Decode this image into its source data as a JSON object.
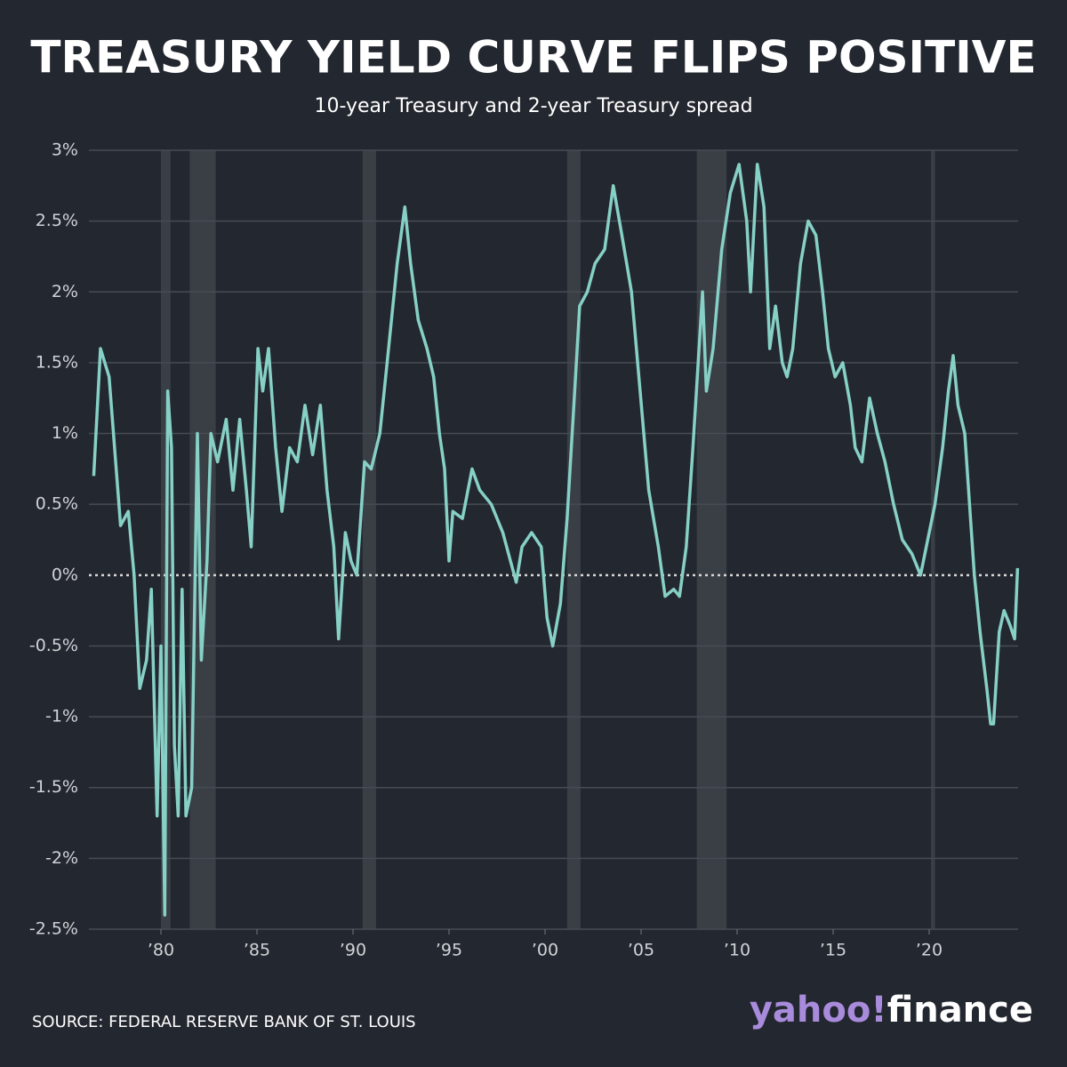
{
  "chart_data": {
    "type": "line",
    "title": "TREASURY YIELD CURVE FLIPS POSITIVE",
    "subtitle": "10-year Treasury and 2-year Treasury spread",
    "source": "SOURCE: FEDERAL RESERVE BANK OF ST. LOUIS",
    "logo": {
      "yahoo": "yahoo!",
      "finance": "finance"
    },
    "color": "#86d0c6",
    "x": [
      1976.5,
      1976.85,
      1977.3,
      1977.9,
      1978.3,
      1978.6,
      1978.9,
      1979.25,
      1979.5,
      1979.8,
      1980.0,
      1980.2,
      1980.35,
      1980.55,
      1980.7,
      1980.9,
      1981.1,
      1981.3,
      1981.6,
      1981.9,
      1982.1,
      1982.4,
      1982.6,
      1982.95,
      1983.4,
      1983.75,
      1984.1,
      1984.45,
      1984.7,
      1985.05,
      1985.3,
      1985.6,
      1985.97,
      1986.3,
      1986.7,
      1987.1,
      1987.5,
      1987.9,
      1988.3,
      1988.65,
      1989.0,
      1989.25,
      1989.6,
      1989.9,
      1990.2,
      1990.6,
      1990.95,
      1991.4,
      1991.85,
      1992.3,
      1992.7,
      1993.0,
      1993.4,
      1993.85,
      1994.2,
      1994.5,
      1994.77,
      1995.0,
      1995.2,
      1995.7,
      1996.2,
      1996.6,
      1997.2,
      1997.8,
      1998.2,
      1998.5,
      1998.8,
      1999.3,
      1999.8,
      2000.1,
      2000.4,
      2000.8,
      2001.15,
      2001.5,
      2001.8,
      2002.2,
      2002.6,
      2003.1,
      2003.55,
      2004.0,
      2004.5,
      2004.95,
      2005.4,
      2005.9,
      2006.25,
      2006.7,
      2007.0,
      2007.35,
      2007.7,
      2008.2,
      2008.4,
      2008.75,
      2009.2,
      2009.65,
      2010.1,
      2010.5,
      2010.7,
      2011.05,
      2011.4,
      2011.7,
      2012.0,
      2012.35,
      2012.6,
      2012.9,
      2013.3,
      2013.7,
      2014.1,
      2014.45,
      2014.75,
      2015.1,
      2015.5,
      2015.9,
      2016.15,
      2016.5,
      2016.9,
      2017.3,
      2017.7,
      2018.15,
      2018.6,
      2019.1,
      2019.55,
      2020.0,
      2020.3,
      2020.7,
      2021.0,
      2021.25,
      2021.5,
      2021.85,
      2022.1,
      2022.35,
      2022.65,
      2023.0,
      2023.2,
      2023.35,
      2023.65,
      2023.9,
      2024.2,
      2024.45,
      2024.6
    ],
    "values": [
      0.7,
      1.6,
      1.4,
      0.35,
      0.45,
      0,
      -0.8,
      -0.6,
      -0.1,
      -1.7,
      -0.5,
      -2.4,
      1.3,
      0.9,
      -1.2,
      -1.7,
      -0.1,
      -1.7,
      -1.5,
      1.0,
      -0.6,
      0.1,
      1.0,
      0.8,
      1.1,
      0.6,
      1.1,
      0.6,
      0.2,
      1.6,
      1.3,
      1.6,
      0.9,
      0.45,
      0.9,
      0.8,
      1.2,
      0.85,
      1.2,
      0.6,
      0.2,
      -0.45,
      0.3,
      0.1,
      0.0,
      0.8,
      0.75,
      1.0,
      1.6,
      2.2,
      2.6,
      2.2,
      1.8,
      1.6,
      1.4,
      1.0,
      0.75,
      0.1,
      0.45,
      0.4,
      0.75,
      0.6,
      0.5,
      0.3,
      0.1,
      -0.05,
      0.2,
      0.3,
      0.2,
      -0.3,
      -0.5,
      -0.2,
      0.4,
      1.2,
      1.9,
      2.0,
      2.2,
      2.3,
      2.75,
      2.4,
      2.0,
      1.3,
      0.6,
      0.2,
      -0.15,
      -0.1,
      -0.15,
      0.2,
      0.9,
      2.0,
      1.3,
      1.6,
      2.3,
      2.7,
      2.9,
      2.5,
      2.0,
      2.9,
      2.6,
      1.6,
      1.9,
      1.5,
      1.4,
      1.6,
      2.2,
      2.5,
      2.4,
      2.0,
      1.6,
      1.4,
      1.5,
      1.2,
      0.9,
      0.8,
      1.25,
      1.0,
      0.8,
      0.5,
      0.25,
      0.15,
      0.0,
      0.3,
      0.5,
      0.9,
      1.3,
      1.55,
      1.2,
      1.0,
      0.5,
      0.0,
      -0.4,
      -0.8,
      -1.05,
      -1.05,
      -0.4,
      -0.25,
      -0.35,
      -0.45,
      0.05
    ],
    "recessions": [
      [
        1980.0,
        1980.5
      ],
      [
        1981.5,
        1982.85
      ],
      [
        1990.5,
        1991.2
      ],
      [
        2001.15,
        2001.85
      ],
      [
        2007.9,
        2009.45
      ],
      [
        2020.1,
        2020.3
      ]
    ],
    "xlim": [
      1976.25,
      2024.63
    ],
    "xticks": [
      {
        "value": 1980,
        "label": "’80"
      },
      {
        "value": 1985,
        "label": "’85"
      },
      {
        "value": 1990,
        "label": "’90"
      },
      {
        "value": 1995,
        "label": "’95"
      },
      {
        "value": 2000,
        "label": "’00"
      },
      {
        "value": 2005,
        "label": "’05"
      },
      {
        "value": 2010,
        "label": "’10"
      },
      {
        "value": 2015,
        "label": "’15"
      },
      {
        "value": 2020,
        "label": "’20"
      }
    ],
    "ylim": [
      -2.5,
      3
    ],
    "yticks": [
      {
        "value": 3,
        "label": "3%"
      },
      {
        "value": 2.5,
        "label": "2.5%"
      },
      {
        "value": 2,
        "label": "2%"
      },
      {
        "value": 1.5,
        "label": "1.5%"
      },
      {
        "value": 1,
        "label": "1%"
      },
      {
        "value": 0.5,
        "label": "0.5%"
      },
      {
        "value": 0,
        "label": "0%"
      },
      {
        "value": -0.5,
        "label": "-0.5%"
      },
      {
        "value": -1,
        "label": "-1%"
      },
      {
        "value": -1.5,
        "label": "-1.5%"
      },
      {
        "value": -2,
        "label": "-2%"
      },
      {
        "value": -2.5,
        "label": "-2.5%"
      }
    ],
    "grid": true
  }
}
